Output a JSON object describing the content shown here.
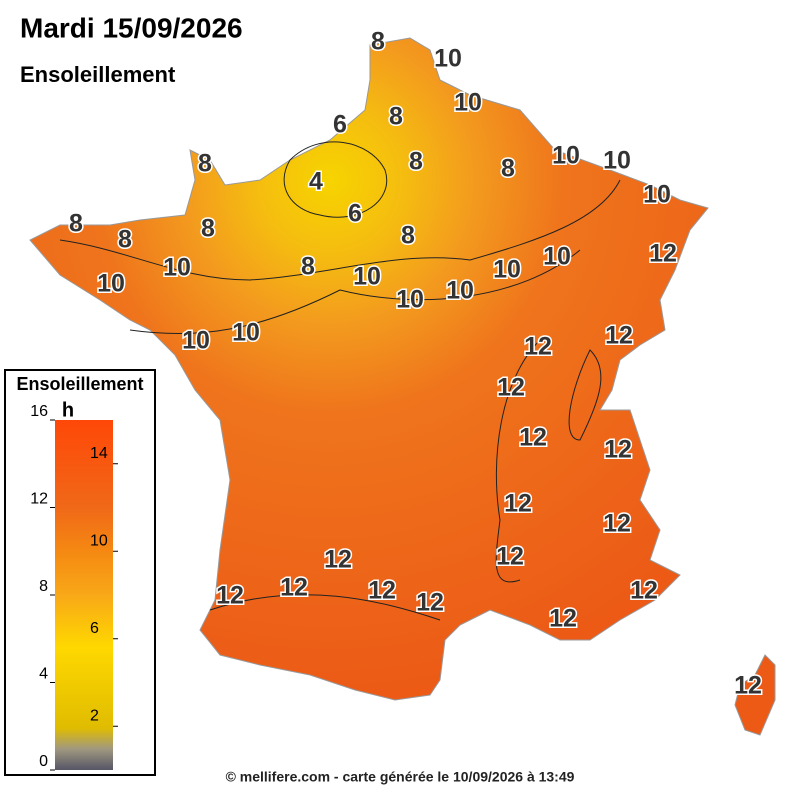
{
  "header": {
    "title": "Mardi 15/09/2026",
    "subtitle": "Ensoleillement"
  },
  "contour_labels": [
    8,
    10,
    10,
    8,
    6,
    8,
    8,
    10,
    10,
    8,
    4,
    10,
    6,
    8,
    8,
    8,
    8,
    10,
    12,
    10,
    8,
    10,
    10,
    10,
    10,
    10,
    10,
    10,
    12,
    12,
    12,
    12,
    12,
    12,
    12,
    12,
    12,
    12,
    12,
    12,
    12,
    12,
    12,
    12
  ],
  "legend": {
    "title": "Ensoleillement",
    "unit": "h",
    "lim": [
      0,
      16
    ],
    "ticks_left": [
      0,
      4,
      8,
      12,
      16
    ],
    "ticks_right": [
      2,
      6,
      10,
      14
    ]
  },
  "footer": "© mellifere.com - carte générée le 10/09/2026 à 13:49"
}
